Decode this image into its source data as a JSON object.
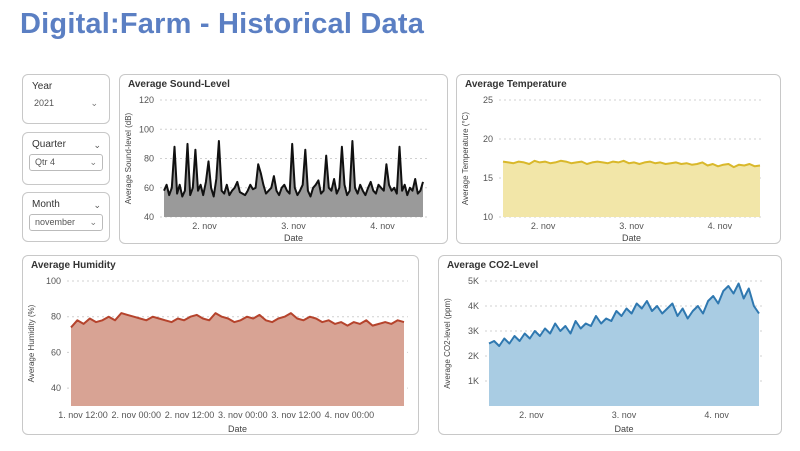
{
  "page": {
    "title": "Digital:Farm - Historical Data"
  },
  "slicers": [
    {
      "label": "Year",
      "value": "2021"
    },
    {
      "label": "Quarter",
      "value": "Qtr 4"
    },
    {
      "label": "Month",
      "value": "november"
    }
  ],
  "chart_data": [
    {
      "type": "area",
      "title": "Average Sound-Level",
      "xlabel": "Date",
      "ylabel": "Average Sound-level (dB)",
      "ylim": [
        40,
        120
      ],
      "yticks": [
        40,
        60,
        80,
        100,
        120
      ],
      "xlim": [
        1.5,
        4.5
      ],
      "xticks": [
        {
          "x": 2,
          "label": "2. nov"
        },
        {
          "x": 3,
          "label": "3. nov"
        },
        {
          "x": 4,
          "label": "4. nov"
        }
      ],
      "grid": true,
      "colors": {
        "fill": "#9a9a9a",
        "line": "#111111"
      },
      "series": [
        {
          "values": [
            58,
            62,
            55,
            60,
            88,
            56,
            62,
            54,
            58,
            90,
            55,
            60,
            86,
            58,
            62,
            55,
            64,
            78,
            60,
            54,
            66,
            92,
            58,
            56,
            62,
            55,
            58,
            60,
            64,
            57,
            56,
            55,
            58,
            62,
            59,
            60,
            76,
            70,
            62,
            56,
            58,
            60,
            68,
            58,
            55,
            60,
            62,
            58,
            56,
            90,
            60,
            55,
            58,
            62,
            86,
            58,
            54,
            60,
            62,
            65,
            56,
            58,
            82,
            60,
            58,
            66,
            56,
            60,
            88,
            62,
            55,
            58,
            92,
            60,
            56,
            62,
            58,
            55,
            60,
            64,
            58,
            56,
            62,
            60,
            58,
            76,
            62,
            58,
            60,
            56,
            88,
            58,
            62,
            55,
            60,
            58,
            66,
            56,
            58,
            64
          ]
        }
      ]
    },
    {
      "type": "area",
      "title": "Average Temperature",
      "xlabel": "Date",
      "ylabel": "Average Temperature (°C)",
      "ylim": [
        10,
        25
      ],
      "yticks": [
        10,
        15,
        20,
        25
      ],
      "xlim": [
        1.5,
        4.5
      ],
      "xticks": [
        {
          "x": 2,
          "label": "2. nov"
        },
        {
          "x": 3,
          "label": "3. nov"
        },
        {
          "x": 4,
          "label": "4. nov"
        }
      ],
      "grid": true,
      "colors": {
        "fill": "#f2e6a8",
        "line": "#d9b82b"
      },
      "series": [
        {
          "values": [
            17.1,
            17.0,
            16.9,
            17.1,
            17.0,
            16.8,
            17.2,
            17.0,
            17.1,
            16.9,
            17.0,
            17.2,
            17.1,
            16.9,
            17.0,
            17.1,
            16.8,
            17.0,
            17.1,
            17.0,
            16.9,
            17.1,
            17.0,
            17.2,
            16.9,
            17.0,
            16.8,
            17.0,
            17.1,
            16.9,
            17.0,
            16.8,
            16.9,
            17.0,
            16.8,
            16.9,
            16.7,
            16.8,
            17.0,
            16.6,
            16.8,
            16.5,
            16.7,
            16.8,
            16.4,
            16.7,
            16.6,
            16.8,
            16.5,
            16.6
          ]
        }
      ]
    },
    {
      "type": "area",
      "title": "Average Humidity",
      "xlabel": "Date",
      "ylabel": "Average Humidity (%)",
      "ylim": [
        30,
        100
      ],
      "yticks": [
        40,
        60,
        80,
        100
      ],
      "xlim": [
        1.35,
        4.55
      ],
      "xticks": [
        {
          "x": 1.5,
          "label": "1. nov 12:00"
        },
        {
          "x": 2.0,
          "label": "2. nov 00:00"
        },
        {
          "x": 2.5,
          "label": "2. nov 12:00"
        },
        {
          "x": 3.0,
          "label": "3. nov 00:00"
        },
        {
          "x": 3.5,
          "label": "3. nov 12:00"
        },
        {
          "x": 4.0,
          "label": "4. nov 00:00"
        }
      ],
      "grid": true,
      "colors": {
        "fill": "#d8a394",
        "line": "#b5432c"
      },
      "series": [
        {
          "values": [
            74,
            78,
            76,
            79,
            77,
            78,
            80,
            78,
            82,
            81,
            80,
            79,
            78,
            80,
            79,
            78,
            77,
            79,
            78,
            80,
            81,
            79,
            78,
            82,
            80,
            79,
            77,
            78,
            80,
            79,
            81,
            78,
            77,
            79,
            80,
            82,
            79,
            78,
            80,
            79,
            77,
            78,
            76,
            77,
            75,
            77,
            76,
            78,
            75,
            76,
            77,
            76,
            78,
            77
          ]
        }
      ]
    },
    {
      "type": "area",
      "title": "Average CO2-Level",
      "xlabel": "Date",
      "ylabel": "Average CO2-level (ppm)",
      "ylim": [
        0,
        5000
      ],
      "yticks": [
        1000,
        2000,
        3000,
        4000,
        5000
      ],
      "yticklabels": [
        "1K",
        "2K",
        "3K",
        "4K",
        "5K"
      ],
      "xlim": [
        1.5,
        4.5
      ],
      "xticks": [
        {
          "x": 2,
          "label": "2. nov"
        },
        {
          "x": 3,
          "label": "3. nov"
        },
        {
          "x": 4,
          "label": "4. nov"
        }
      ],
      "grid": true,
      "colors": {
        "fill": "#a9cce3",
        "line": "#2f78b0"
      },
      "series": [
        {
          "values": [
            2500,
            2600,
            2400,
            2700,
            2500,
            2800,
            2600,
            2900,
            2700,
            3000,
            2800,
            3100,
            2900,
            3300,
            3000,
            3200,
            2900,
            3400,
            3100,
            3300,
            3200,
            3600,
            3300,
            3500,
            3400,
            3800,
            3600,
            3900,
            3700,
            4100,
            3900,
            4200,
            3800,
            4000,
            3700,
            3900,
            4100,
            3600,
            3900,
            3500,
            3800,
            4000,
            3700,
            4200,
            4400,
            4100,
            4600,
            4800,
            4500,
            4900,
            4300,
            4700,
            4000,
            3700
          ]
        }
      ]
    }
  ]
}
